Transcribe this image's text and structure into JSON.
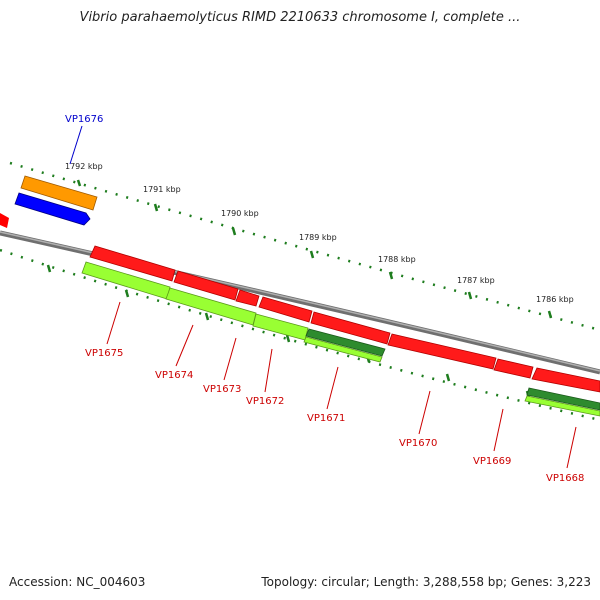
{
  "header": {
    "title": "Vibrio parahaemolyticus RIMD 2210633 chromosome I, complete ..."
  },
  "footer": {
    "accession": "Accession: NC_004603",
    "summary": "Topology: circular; Length: 3,288,558 bp; Genes: 3,223"
  },
  "colors": {
    "backbone": "#8a8a8a",
    "tick": "#1e7d1e",
    "red": "#ff0000",
    "orange": "#ff9900",
    "blue": "#0000ff",
    "lightgreen": "#99ff33",
    "darkgreen": "#2e8b2e"
  },
  "ruler": [
    {
      "label": "1792 kbp"
    },
    {
      "label": "1791 kbp"
    },
    {
      "label": "1790 kbp"
    },
    {
      "label": "1789 kbp"
    },
    {
      "label": "1788 kbp"
    },
    {
      "label": "1787 kbp"
    },
    {
      "label": "1786 kbp"
    }
  ],
  "genes": [
    {
      "name": "VP1676",
      "color": "blue",
      "label_color": "#0000cc"
    },
    {
      "name": "VP1675",
      "color": "lightgreen",
      "label_color": "#cc0000"
    },
    {
      "name": "VP1674",
      "color": "lightgreen",
      "label_color": "#cc0000"
    },
    {
      "name": "VP1673",
      "color": "lightgreen",
      "label_color": "#cc0000"
    },
    {
      "name": "VP1672",
      "color": "lightgreen",
      "label_color": "#cc0000"
    },
    {
      "name": "VP1671",
      "color": "darkgreen",
      "label_color": "#cc0000"
    },
    {
      "name": "VP1670",
      "color": "red",
      "label_color": "#cc0000"
    },
    {
      "name": "VP1669",
      "color": "red",
      "label_color": "#cc0000"
    },
    {
      "name": "VP1668",
      "color": "darkgreen",
      "label_color": "#cc0000"
    }
  ]
}
